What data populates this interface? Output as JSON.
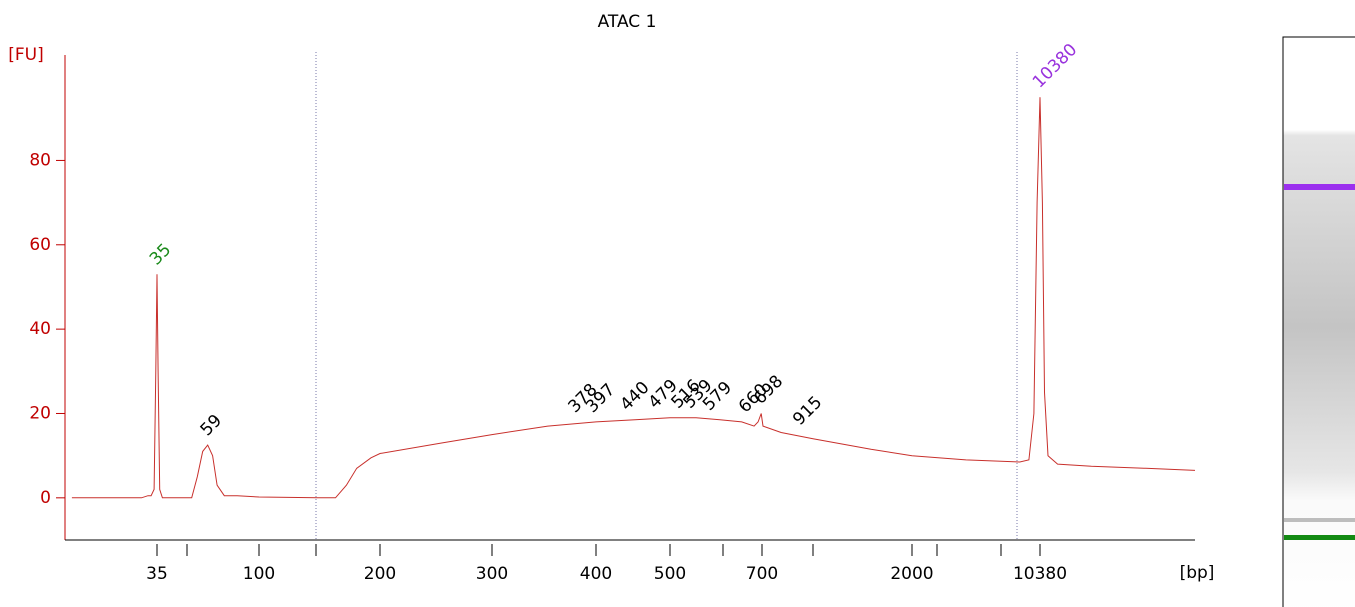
{
  "chart_data": {
    "type": "line",
    "title": "ATAC 1",
    "ylabel": "[FU]",
    "xlabel": "[bp]",
    "xscale": "log",
    "xlim": [
      14,
      75000
    ],
    "xticks": [
      35,
      100,
      200,
      300,
      400,
      500,
      700,
      2000,
      10380
    ],
    "ylim": [
      -10,
      105
    ],
    "yticks": [
      0,
      20,
      40,
      60,
      80
    ],
    "series": [
      {
        "color": "#c8302c",
        "x": [
          15,
          30,
          32,
          33,
          34,
          34.6,
          35,
          35.4,
          36,
          37,
          50,
          53,
          56,
          59,
          62,
          65,
          70,
          80,
          100,
          140,
          155,
          165,
          175,
          190,
          200,
          250,
          300,
          350,
          400,
          450,
          500,
          550,
          600,
          650,
          680,
          690,
          698,
          705,
          800,
          1000,
          1500,
          2000,
          4000,
          8000,
          9000,
          9600,
          10000,
          10380,
          10700,
          11000,
          11500,
          13000,
          20000,
          40000,
          75000
        ],
        "values": [
          0,
          0,
          0.5,
          0.5,
          2,
          30,
          53,
          30,
          2,
          0,
          0,
          5,
          11,
          12.5,
          10,
          3,
          0.5,
          0.5,
          0.2,
          0,
          0,
          3,
          7,
          9.5,
          10.5,
          13,
          15,
          17,
          18,
          18.5,
          19,
          19,
          18.5,
          18,
          17,
          18,
          20,
          17,
          15.5,
          14,
          11.5,
          10,
          9,
          8.5,
          9,
          20,
          70,
          95,
          70,
          25,
          10,
          8,
          7.5,
          7,
          6.5
        ]
      }
    ],
    "peaks": [
      {
        "label": "35",
        "x": 35,
        "y": 53,
        "color": "#1a8a1a"
      },
      {
        "label": "59",
        "x": 59,
        "y": 12.5,
        "color": "#000000"
      },
      {
        "label": "378",
        "x": 378,
        "y": 18,
        "color": "#000000"
      },
      {
        "label": "397",
        "x": 397,
        "y": 18,
        "color": "#000000"
      },
      {
        "label": "440",
        "x": 440,
        "y": 18.5,
        "color": "#000000"
      },
      {
        "label": "479",
        "x": 479,
        "y": 19,
        "color": "#000000"
      },
      {
        "label": "516",
        "x": 516,
        "y": 19,
        "color": "#000000"
      },
      {
        "label": "539",
        "x": 539,
        "y": 19,
        "color": "#000000"
      },
      {
        "label": "579",
        "x": 579,
        "y": 18.5,
        "color": "#000000"
      },
      {
        "label": "660",
        "x": 660,
        "y": 18,
        "color": "#000000"
      },
      {
        "label": "698",
        "x": 698,
        "y": 20,
        "color": "#000000"
      },
      {
        "label": "915",
        "x": 915,
        "y": 15,
        "color": "#000000"
      },
      {
        "label": "10380",
        "x": 10380,
        "y": 95,
        "color": "#9933dd"
      }
    ]
  }
}
